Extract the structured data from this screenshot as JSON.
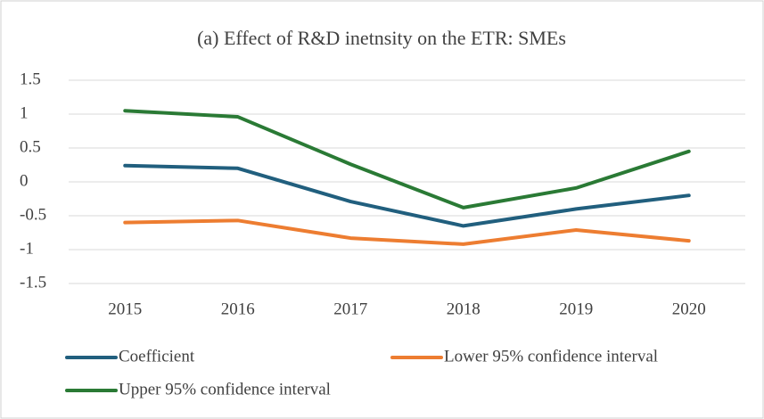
{
  "chart_data": {
    "type": "line",
    "title": "(a) Effect of R&D inetnsity on the ETR: SMEs",
    "categories": [
      "2015",
      "2016",
      "2017",
      "2018",
      "2019",
      "2020"
    ],
    "series": [
      {
        "name": "Coefficient",
        "color": "#215f7e",
        "values": [
          0.24,
          0.2,
          -0.29,
          -0.65,
          -0.4,
          -0.2
        ]
      },
      {
        "name": "Lower 95% confidence interval",
        "color": "#ed7d31",
        "values": [
          -0.6,
          -0.57,
          -0.83,
          -0.92,
          -0.71,
          -0.87
        ]
      },
      {
        "name": "Upper 95% confidence interval",
        "color": "#2a7a35",
        "values": [
          1.05,
          0.96,
          0.26,
          -0.38,
          -0.09,
          0.45
        ]
      }
    ],
    "ylim": [
      -1.5,
      1.5
    ],
    "yticks": [
      1.5,
      1,
      0.5,
      0,
      -0.5,
      -1,
      -1.5
    ],
    "grid": true
  }
}
